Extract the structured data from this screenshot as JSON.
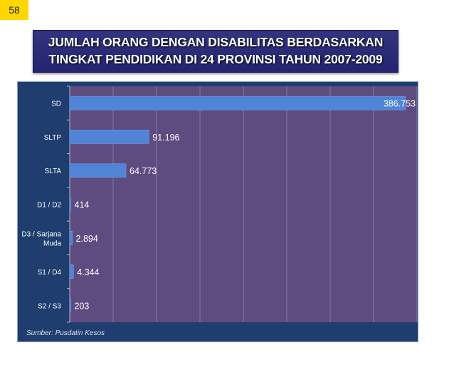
{
  "page_number": "58",
  "title": {
    "line1": "JUMLAH ORANG DENGAN DISABILITAS BERDASARKAN",
    "line2": "TINGKAT PENDIDIKAN DI 24 PROVINSI TAHUN 2007-2009"
  },
  "source": "Sumber: Pusdatin Kesos",
  "colors": {
    "plot_background": "#5e4c80",
    "frame_background": "#1f3d6e",
    "bar": "#4f84d6",
    "title_background": "#2a2a78"
  },
  "chart_data": {
    "type": "bar",
    "orientation": "horizontal",
    "categories": [
      "SD",
      "SLTP",
      "SLTA",
      "D1 / D2",
      "D3 / Sarjana Muda",
      "S1 / D4",
      "S2 / S3"
    ],
    "category_label_lines": [
      [
        "SD"
      ],
      [
        "SLTP"
      ],
      [
        "SLTA"
      ],
      [
        "D1 / D2"
      ],
      [
        "D3 / Sarjana",
        "Muda"
      ],
      [
        "S1 / D4"
      ],
      [
        "S2 / S3"
      ]
    ],
    "values": [
      386753,
      91196,
      64773,
      414,
      2894,
      4344,
      203
    ],
    "data_labels": [
      "386.753",
      "91.196",
      "64.773",
      "414",
      "2.894",
      "4.344",
      "203"
    ],
    "xlim": [
      0,
      400000
    ],
    "grid": true,
    "legend": "none",
    "title": "JUMLAH ORANG DENGAN DISABILITAS BERDASARKAN TINGKAT PENDIDIKAN DI 24 PROVINSI TAHUN 2007-2009"
  }
}
